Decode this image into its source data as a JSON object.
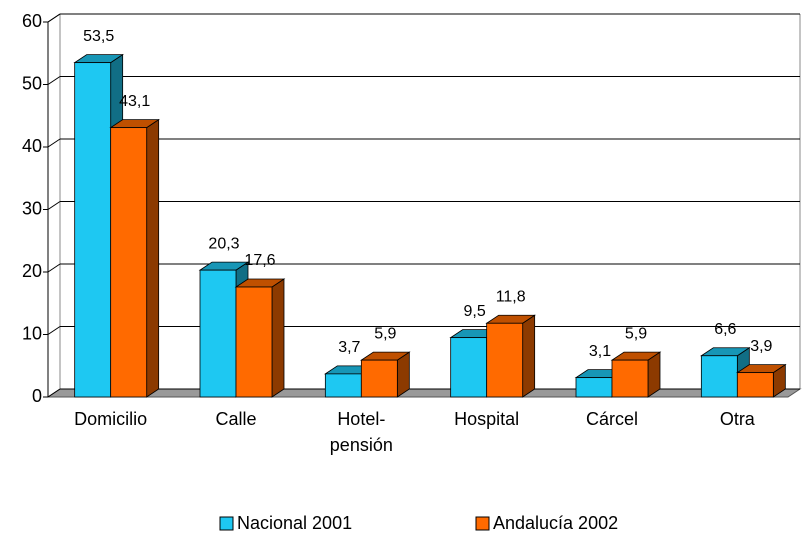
{
  "chart_data": {
    "type": "bar3d",
    "categories": [
      "Domicilio",
      "Calle",
      "Hotel-pensión",
      "Hospital",
      "Cárcel",
      "Otra"
    ],
    "series": [
      {
        "name": "Nacional 2001",
        "color": "#1ec8f2",
        "values": [
          53.5,
          20.3,
          3.7,
          9.5,
          3.1,
          6.6
        ],
        "value_labels": [
          "53,5",
          "20,3",
          "3,7",
          "9,5",
          "3,1",
          "6,6"
        ]
      },
      {
        "name": "Andalucía 2002",
        "color": "#ff6a00",
        "values": [
          43.1,
          17.6,
          5.9,
          11.8,
          5.9,
          3.9
        ],
        "value_labels": [
          "43,1",
          "17,6",
          "5,9",
          "11,8",
          "5,9",
          "3,9"
        ]
      }
    ],
    "ylim": [
      0,
      60
    ],
    "yticks": [
      0,
      10,
      20,
      30,
      40,
      50,
      60
    ],
    "grid": true,
    "legend": "bottom"
  }
}
